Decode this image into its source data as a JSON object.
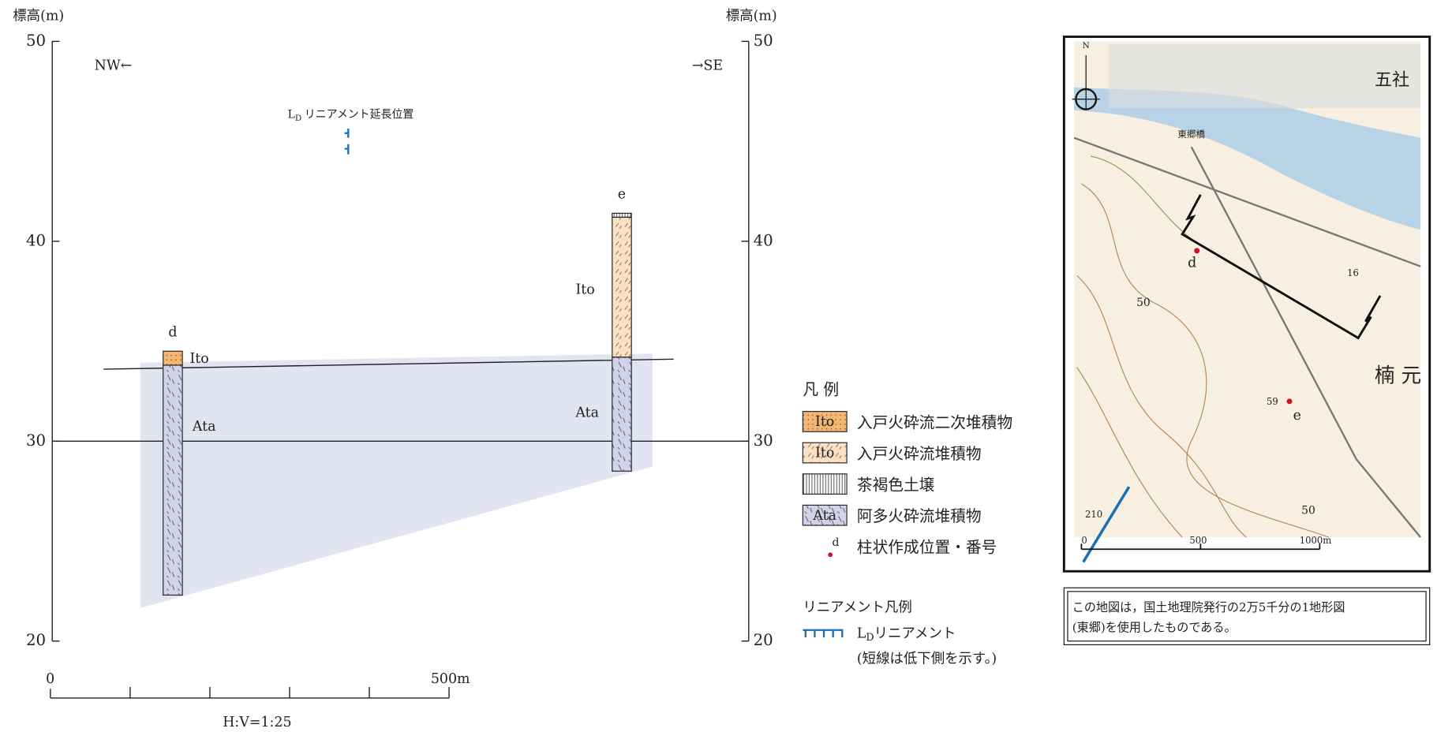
{
  "section": {
    "y_label_left": "標高(m)",
    "y_label_right": "標高(m)",
    "ylim": [
      20,
      50
    ],
    "yticks": [
      20,
      30,
      40,
      50
    ],
    "direction_left": "NW←",
    "direction_right": "→SE",
    "lineament": {
      "main": "L",
      "sub": "D",
      "text": "リニアメント延長位置"
    },
    "columns": [
      {
        "id": "d",
        "layers": [
          {
            "label": "Ito",
            "top": 34.5,
            "bottom": 33.8
          },
          {
            "label": "Ata",
            "top": 33.8,
            "bottom": 22.3
          }
        ]
      },
      {
        "id": "e",
        "layers": [
          {
            "top": 41.4,
            "bottom": 41.2
          },
          {
            "label": "Ito",
            "top": 41.2,
            "bottom": 34.2
          },
          {
            "label": "Ata",
            "top": 34.2,
            "bottom": 28.5
          }
        ]
      }
    ],
    "scale": {
      "start": "0",
      "end": "500m",
      "ratio": "H:V=1:25"
    }
  },
  "legend": {
    "title": "凡 例",
    "items": [
      {
        "swatch": "Ito",
        "text": "入戸火砕流二次堆積物"
      },
      {
        "swatch": "Ito",
        "text": "入戸火砕流堆積物"
      },
      {
        "text": "茶褐色土壌"
      },
      {
        "swatch": "Ata",
        "text": "阿多火砕流堆積物"
      },
      {
        "swatch": "d",
        "text": "柱状作成位置・番号"
      }
    ]
  },
  "lineament_legend": {
    "title": "リニアメント凡例",
    "main": "L",
    "sub": "D",
    "text": "リニアメント",
    "note": "(短線は低下側を示す。)"
  },
  "map": {
    "labels": [
      "N",
      "五社",
      "東郷橋",
      "楠 元",
      "d",
      "e",
      "59",
      "16",
      "50",
      "50",
      "210",
      "0",
      "500",
      "1000m"
    ]
  },
  "caption": [
    "この地図は，国土地理院発行の2万5千分の1地形図",
    "(東郷)を使用したものである。"
  ]
}
